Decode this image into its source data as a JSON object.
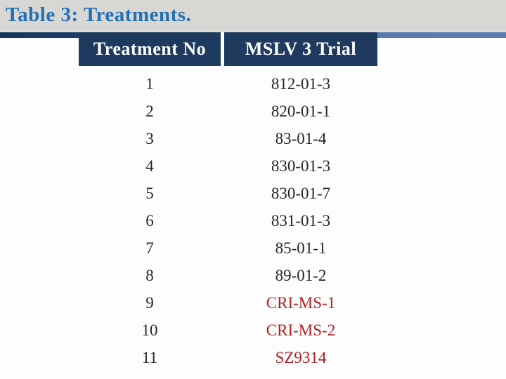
{
  "slide": {
    "title": "Table 3: Treatments.",
    "colors": {
      "title_blue": "#2170b5",
      "band_gray": "#d9d7d3",
      "header_navy": "#1e3a5f",
      "divider_left_navy": "#16365d",
      "divider_right_blue": "#5b79ab",
      "divider_top_line": "#d4e0ee",
      "body_text": "#262626",
      "highlight_red": "#b02025"
    }
  },
  "table": {
    "columns": [
      "Treatment No",
      "MSLV 3 Trial"
    ],
    "rows": [
      {
        "treatment_no": "1",
        "trial": "812-01-3",
        "highlight": false
      },
      {
        "treatment_no": "2",
        "trial": "820-01-1",
        "highlight": false
      },
      {
        "treatment_no": "3",
        "trial": "83-01-4",
        "highlight": false
      },
      {
        "treatment_no": "4",
        "trial": "830-01-3",
        "highlight": false
      },
      {
        "treatment_no": "5",
        "trial": "830-01-7",
        "highlight": false
      },
      {
        "treatment_no": "6",
        "trial": "831-01-3",
        "highlight": false
      },
      {
        "treatment_no": "7",
        "trial": "85-01-1",
        "highlight": false
      },
      {
        "treatment_no": "8",
        "trial": "89-01-2",
        "highlight": false
      },
      {
        "treatment_no": "9",
        "trial": "CRI-MS-1",
        "highlight": true
      },
      {
        "treatment_no": "10",
        "trial": "CRI-MS-2",
        "highlight": true
      },
      {
        "treatment_no": "11",
        "trial": "SZ9314",
        "highlight": true
      }
    ]
  }
}
